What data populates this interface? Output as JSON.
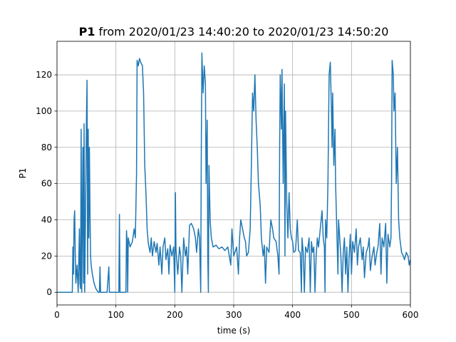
{
  "chart_data": {
    "type": "line",
    "title": {
      "variable": "P1",
      "text": "from 2020/01/23 14:40:20 to 2020/01/23 14:50:20"
    },
    "x_label": "time (s)",
    "y_label": "P1",
    "color": "#1f77b4",
    "grid": true,
    "xlim": [
      0,
      600
    ],
    "xticks": [
      0,
      100,
      200,
      300,
      400,
      500,
      600
    ],
    "ylim": [
      -7,
      138.5
    ],
    "yticks": [
      0,
      20,
      40,
      60,
      80,
      100,
      120
    ],
    "x": [
      0,
      26,
      27,
      28,
      29,
      30,
      31,
      32,
      34,
      36,
      38,
      39,
      40,
      41,
      42,
      44,
      45,
      46,
      47,
      48,
      50,
      51,
      52,
      53,
      54,
      55,
      56,
      57,
      58,
      60,
      63,
      66,
      70,
      72,
      73,
      74,
      80,
      85,
      88,
      89,
      95,
      100,
      105,
      106,
      107,
      110,
      117,
      118,
      119,
      120,
      121,
      124,
      128,
      131,
      133,
      135,
      136,
      138,
      140,
      142,
      145,
      147,
      149,
      151,
      153,
      155,
      158,
      160,
      162,
      165,
      168,
      170,
      173,
      175,
      178,
      180,
      183,
      185,
      188,
      190,
      192,
      195,
      198,
      200,
      201,
      202,
      205,
      208,
      210,
      212,
      215,
      218,
      220,
      222,
      225,
      228,
      232,
      235,
      237,
      240,
      242,
      244,
      245,
      246,
      248,
      250,
      252,
      253,
      255,
      256,
      257,
      258,
      260,
      262,
      265,
      270,
      275,
      280,
      285,
      290,
      295,
      297,
      300,
      305,
      308,
      310,
      312,
      315,
      318,
      320,
      322,
      325,
      328,
      330,
      332,
      334,
      336,
      338,
      340,
      342,
      345,
      347,
      350,
      352,
      354,
      356,
      360,
      363,
      366,
      368,
      372,
      375,
      377,
      378,
      379,
      381,
      382,
      384,
      386,
      387,
      388,
      390,
      392,
      394,
      396,
      398,
      400,
      402,
      405,
      408,
      410,
      413,
      415,
      416,
      418,
      420,
      422,
      425,
      428,
      430,
      432,
      434,
      436,
      438,
      440,
      442,
      444,
      447,
      450,
      452,
      454,
      455,
      456,
      458,
      460,
      462,
      464,
      466,
      467,
      468,
      470,
      472,
      473,
      475,
      477,
      478,
      480,
      482,
      484,
      486,
      488,
      490,
      492,
      494,
      496,
      498,
      500,
      502,
      505,
      508,
      510,
      512,
      515,
      518,
      520,
      522,
      525,
      528,
      530,
      532,
      535,
      538,
      540,
      543,
      545,
      548,
      550,
      552,
      555,
      558,
      560,
      562,
      565,
      567,
      568,
      569,
      571,
      572,
      574,
      576,
      578,
      580,
      582,
      585,
      588,
      590,
      593,
      596,
      598,
      600
    ],
    "values": [
      0,
      0,
      25,
      10,
      40,
      45,
      20,
      5,
      15,
      0,
      35,
      5,
      2,
      90,
      0,
      80,
      5,
      93,
      0,
      30,
      95,
      117,
      10,
      90,
      30,
      80,
      45,
      20,
      15,
      10,
      5,
      2,
      0,
      0,
      14,
      0,
      0,
      0,
      14,
      0,
      0,
      0,
      0,
      43,
      0,
      0,
      0,
      34,
      28,
      0,
      30,
      25,
      28,
      35,
      30,
      65,
      128,
      125,
      129,
      127,
      125,
      110,
      70,
      55,
      35,
      27,
      22,
      30,
      20,
      28,
      22,
      27,
      15,
      25,
      10,
      25,
      30,
      18,
      24,
      10,
      26,
      20,
      25,
      0,
      55,
      24,
      10,
      25,
      20,
      0,
      30,
      20,
      25,
      10,
      37,
      38,
      35,
      30,
      22,
      35,
      30,
      0,
      80,
      132,
      110,
      125,
      115,
      60,
      95,
      20,
      0,
      70,
      40,
      30,
      25,
      26,
      24,
      25,
      23,
      25,
      15,
      35,
      20,
      25,
      10,
      30,
      40,
      35,
      30,
      28,
      20,
      22,
      35,
      70,
      110,
      100,
      120,
      95,
      80,
      60,
      48,
      30,
      20,
      26,
      5,
      25,
      22,
      40,
      35,
      30,
      28,
      20,
      10,
      80,
      120,
      90,
      123,
      60,
      115,
      20,
      100,
      50,
      30,
      55,
      35,
      30,
      28,
      22,
      23,
      40,
      23,
      22,
      0,
      30,
      22,
      0,
      25,
      22,
      30,
      0,
      28,
      22,
      25,
      0,
      20,
      30,
      25,
      35,
      45,
      30,
      25,
      0,
      40,
      30,
      60,
      120,
      127,
      100,
      80,
      110,
      70,
      90,
      60,
      35,
      10,
      40,
      30,
      20,
      0,
      22,
      30,
      10,
      25,
      0,
      20,
      32,
      10,
      28,
      22,
      35,
      15,
      25,
      30,
      18,
      25,
      8,
      22,
      25,
      30,
      12,
      20,
      25,
      15,
      22,
      25,
      38,
      10,
      30,
      25,
      38,
      5,
      32,
      25,
      30,
      60,
      128,
      120,
      100,
      110,
      60,
      80,
      40,
      30,
      22,
      20,
      18,
      22,
      20,
      15,
      18
    ]
  }
}
